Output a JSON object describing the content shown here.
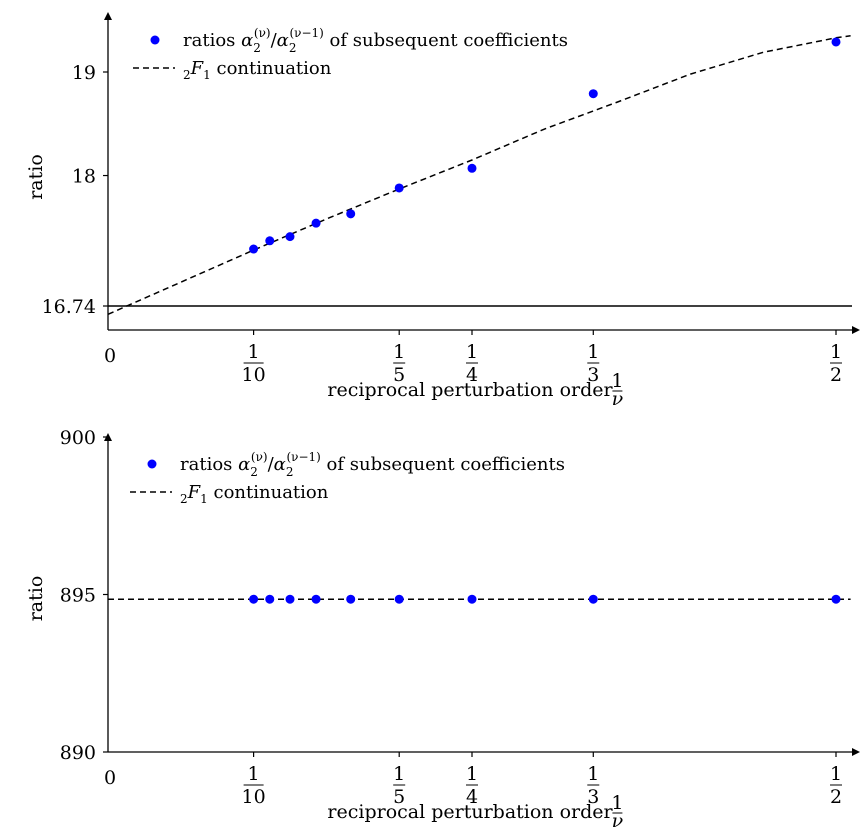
{
  "chart_data": [
    {
      "type": "scatter",
      "title": "",
      "xlabel": "reciprocal perturbation order 1/ν",
      "ylabel": "ratio",
      "xlim": [
        0,
        0.51
      ],
      "ylim": [
        16.5,
        19.65
      ],
      "xticks": [
        {
          "value": 0,
          "label": "0"
        },
        {
          "value": 0.1,
          "label": "1/10"
        },
        {
          "value": 0.2,
          "label": "1/5"
        },
        {
          "value": 0.25,
          "label": "1/4"
        },
        {
          "value": 0.3333,
          "label": "1/3"
        },
        {
          "value": 0.5,
          "label": "1/2"
        }
      ],
      "yticks": [
        {
          "value": 16.74,
          "label": "16.74"
        },
        {
          "value": 18,
          "label": "18"
        },
        {
          "value": 19,
          "label": "19"
        }
      ],
      "hline": 16.74,
      "grid": false,
      "legend_position": "top-left",
      "series": [
        {
          "name": "ratios α2(ν)/α2(ν−1) of subsequent coefficients",
          "kind": "points",
          "color": "#0000ff",
          "x": [
            0.1,
            0.1111,
            0.125,
            0.1429,
            0.1667,
            0.2,
            0.25,
            0.3333,
            0.5
          ],
          "y": [
            17.29,
            17.37,
            17.41,
            17.54,
            17.63,
            17.88,
            18.07,
            18.79,
            19.29
          ]
        },
        {
          "name": "₂F₁ continuation",
          "kind": "dashed-line",
          "color": "#000000",
          "x": [
            0,
            0.05,
            0.1,
            0.15,
            0.2,
            0.25,
            0.3,
            0.35,
            0.4,
            0.45,
            0.5,
            0.51
          ],
          "y": [
            16.66,
            16.97,
            17.28,
            17.58,
            17.87,
            18.15,
            18.45,
            18.71,
            18.98,
            19.19,
            19.33,
            19.35
          ]
        }
      ]
    },
    {
      "type": "scatter",
      "title": "",
      "xlabel": "reciprocal perturbation order 1/ν",
      "ylabel": "ratio",
      "xlim": [
        0,
        0.51
      ],
      "ylim": [
        890,
        901.7
      ],
      "xticks": [
        {
          "value": 0,
          "label": "0"
        },
        {
          "value": 0.1,
          "label": "1/10"
        },
        {
          "value": 0.2,
          "label": "1/5"
        },
        {
          "value": 0.25,
          "label": "1/4"
        },
        {
          "value": 0.3333,
          "label": "1/3"
        },
        {
          "value": 0.5,
          "label": "1/2"
        }
      ],
      "yticks": [
        {
          "value": 890,
          "label": "890"
        },
        {
          "value": 895,
          "label": "895"
        },
        {
          "value": 900,
          "label": "900"
        }
      ],
      "grid": false,
      "legend_position": "top-left",
      "series": [
        {
          "name": "ratios α2(ν)/α2(ν−1) of subsequent coefficients",
          "kind": "points",
          "color": "#0000ff",
          "x": [
            0.1,
            0.1111,
            0.125,
            0.1429,
            0.1667,
            0.2,
            0.25,
            0.3333,
            0.5
          ],
          "y": [
            894.85,
            894.85,
            894.85,
            894.85,
            894.85,
            894.85,
            894.85,
            894.85,
            894.85
          ]
        },
        {
          "name": "₂F₁ continuation",
          "kind": "dashed-line",
          "color": "#000000",
          "x": [
            0,
            0.51
          ],
          "y": [
            894.85,
            894.85
          ]
        }
      ]
    }
  ]
}
